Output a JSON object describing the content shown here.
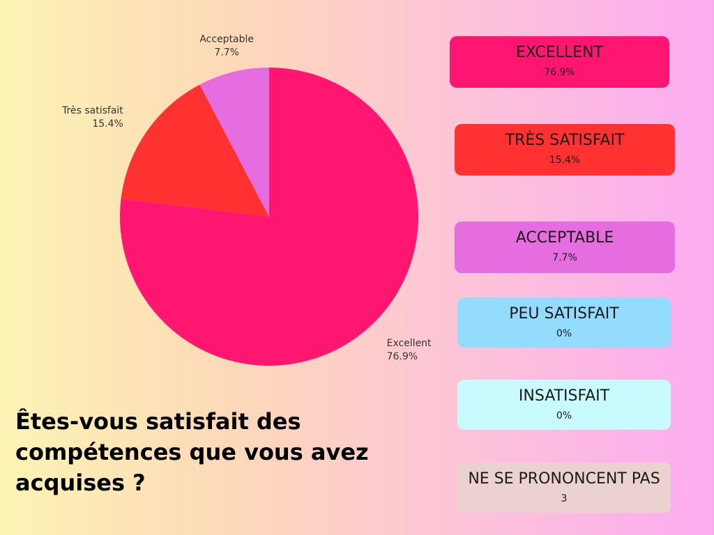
{
  "chart_data": {
    "type": "pie",
    "title": "Êtes-vous satisfait des compétences que vous avez acquises ?",
    "slices": [
      {
        "label": "Excellent",
        "value": 76.9,
        "display": "76.9%",
        "color": "#ff1670"
      },
      {
        "label": "Très satisfait",
        "value": 15.4,
        "display": "15.4%",
        "color": "#ff3131"
      },
      {
        "label": "Acceptable",
        "value": 7.7,
        "display": "7.7%",
        "color": "#e56ddf"
      }
    ]
  },
  "legend_cards": [
    {
      "name": "EXCELLENT",
      "value": "76.9%",
      "color": "#ff1670"
    },
    {
      "name": "TRÈS SATISFAIT",
      "value": "15.4%",
      "color": "#ff3131"
    },
    {
      "name": "ACCEPTABLE",
      "value": "7.7%",
      "color": "#e56ddf"
    },
    {
      "name": "PEU SATISFAIT",
      "value": "0%",
      "color": "#93dcfd"
    },
    {
      "name": "INSATISFAIT",
      "value": "0%",
      "color": "#c9fafd"
    },
    {
      "name": "NE SE PRONONCENT PAS",
      "value": "3",
      "color": "#ecd1d1"
    }
  ]
}
